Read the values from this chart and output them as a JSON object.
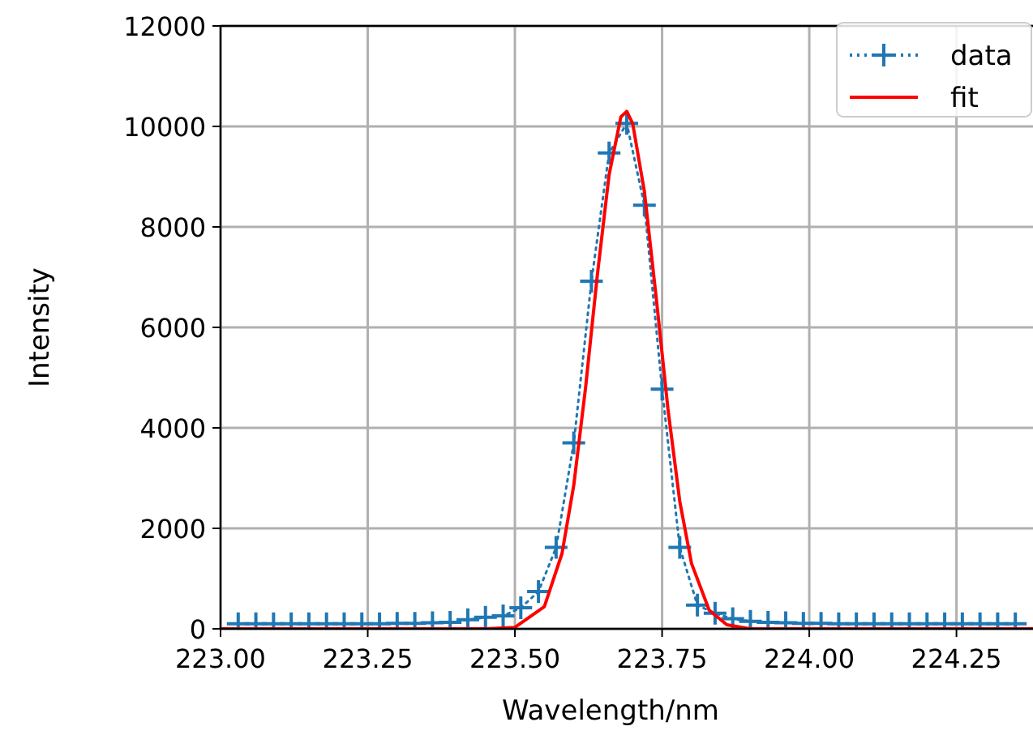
{
  "chart_data": {
    "type": "line",
    "xlabel": "Wavelength/nm",
    "ylabel": "Intensity",
    "xlim": [
      223.0,
      224.38
    ],
    "ylim": [
      0,
      12000
    ],
    "xticks": [
      {
        "value": 223.0,
        "label": "223.00"
      },
      {
        "value": 223.25,
        "label": "223.25"
      },
      {
        "value": 223.5,
        "label": "223.50"
      },
      {
        "value": 223.75,
        "label": "223.75"
      },
      {
        "value": 224.0,
        "label": "224.00"
      },
      {
        "value": 224.25,
        "label": "224.25"
      }
    ],
    "yticks": [
      0,
      2000,
      4000,
      6000,
      8000,
      10000,
      12000
    ],
    "grid": true,
    "legend": "top right",
    "series": [
      {
        "name": "data",
        "color": "#1f77b4",
        "marker": "cross",
        "line_style": "dotted",
        "x": [
          223.03,
          223.06,
          223.09,
          223.12,
          223.15,
          223.18,
          223.21,
          223.24,
          223.27,
          223.3,
          223.33,
          223.36,
          223.39,
          223.42,
          223.45,
          223.48,
          223.51,
          223.54,
          223.57,
          223.6,
          223.63,
          223.66,
          223.69,
          223.72,
          223.75,
          223.78,
          223.81,
          223.84,
          223.87,
          223.9,
          223.93,
          223.96,
          223.99,
          224.02,
          224.05,
          224.08,
          224.11,
          224.14,
          224.17,
          224.2,
          224.23,
          224.26,
          224.29,
          224.32,
          224.35
        ],
        "values": [
          100,
          100,
          100,
          100,
          100,
          100,
          100,
          100,
          100,
          110,
          110,
          120,
          130,
          180,
          230,
          260,
          420,
          740,
          1620,
          3700,
          6920,
          9470,
          10060,
          8430,
          4770,
          1620,
          470,
          310,
          200,
          150,
          130,
          120,
          110,
          110,
          100,
          100,
          100,
          100,
          100,
          100,
          100,
          100,
          100,
          100,
          100
        ]
      },
      {
        "name": "fit",
        "color": "#ff0000",
        "marker": "none",
        "line_style": "solid",
        "x": [
          223.0,
          223.45,
          223.5,
          223.55,
          223.58,
          223.6,
          223.62,
          223.64,
          223.66,
          223.68,
          223.69,
          223.7,
          223.72,
          223.74,
          223.76,
          223.78,
          223.8,
          223.83,
          223.86,
          223.9,
          224.38
        ],
        "values": [
          0,
          0,
          30,
          440,
          1500,
          2860,
          4800,
          7040,
          9040,
          10190,
          10300,
          10060,
          8700,
          6590,
          4370,
          2540,
          1300,
          370,
          80,
          0,
          0
        ]
      }
    ]
  }
}
